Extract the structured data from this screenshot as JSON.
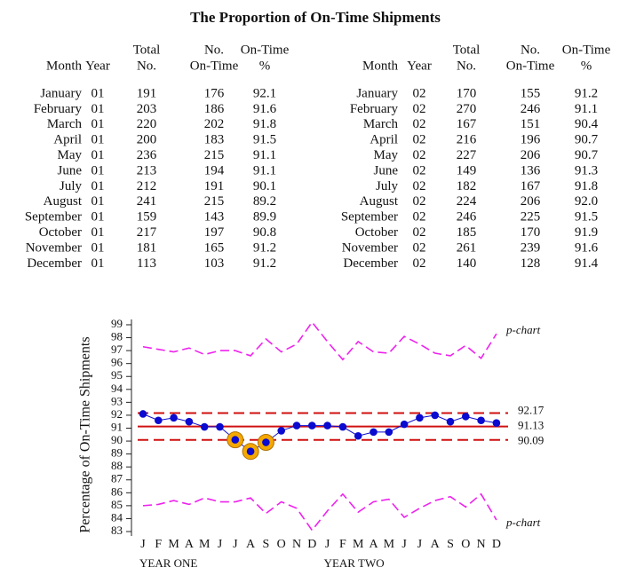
{
  "title": "The Proportion of On-Time Shipments",
  "tables": [
    {
      "columns": [
        [
          "Month"
        ],
        [
          "Year"
        ],
        [
          "Total",
          "No."
        ],
        [
          "No.",
          "On-Time"
        ],
        [
          "On-Time",
          "%"
        ]
      ],
      "rows": [
        [
          "January",
          "01",
          "191",
          "176",
          "92.1"
        ],
        [
          "February",
          "01",
          "203",
          "186",
          "91.6"
        ],
        [
          "March",
          "01",
          "220",
          "202",
          "91.8"
        ],
        [
          "April",
          "01",
          "200",
          "183",
          "91.5"
        ],
        [
          "May",
          "01",
          "236",
          "215",
          "91.1"
        ],
        [
          "June",
          "01",
          "213",
          "194",
          "91.1"
        ],
        [
          "July",
          "01",
          "212",
          "191",
          "90.1"
        ],
        [
          "August",
          "01",
          "241",
          "215",
          "89.2"
        ],
        [
          "September",
          "01",
          "159",
          "143",
          "89.9"
        ],
        [
          "October",
          "01",
          "217",
          "197",
          "90.8"
        ],
        [
          "November",
          "01",
          "181",
          "165",
          "91.2"
        ],
        [
          "December",
          "01",
          "113",
          "103",
          "91.2"
        ]
      ]
    },
    {
      "columns": [
        [
          "Month"
        ],
        [
          "Year"
        ],
        [
          "Total",
          "No."
        ],
        [
          "No.",
          "On-Time"
        ],
        [
          "On-Time",
          "%"
        ]
      ],
      "rows": [
        [
          "January",
          "02",
          "170",
          "155",
          "91.2"
        ],
        [
          "February",
          "02",
          "270",
          "246",
          "91.1"
        ],
        [
          "March",
          "02",
          "167",
          "151",
          "90.4"
        ],
        [
          "April",
          "02",
          "216",
          "196",
          "90.7"
        ],
        [
          "May",
          "02",
          "227",
          "206",
          "90.7"
        ],
        [
          "June",
          "02",
          "149",
          "136",
          "91.3"
        ],
        [
          "July",
          "02",
          "182",
          "167",
          "91.8"
        ],
        [
          "August",
          "02",
          "224",
          "206",
          "92.0"
        ],
        [
          "September",
          "02",
          "246",
          "225",
          "91.5"
        ],
        [
          "October",
          "02",
          "185",
          "170",
          "91.9"
        ],
        [
          "November",
          "02",
          "261",
          "239",
          "91.6"
        ],
        [
          "December",
          "02",
          "140",
          "128",
          "91.4"
        ]
      ]
    }
  ],
  "chart_data": {
    "type": "line",
    "y_label": "Percentage of On-Time Shipments",
    "categories": [
      "J",
      "F",
      "M",
      "A",
      "M",
      "J",
      "J",
      "A",
      "S",
      "O",
      "N",
      "D",
      "J",
      "F",
      "M",
      "A",
      "M",
      "J",
      "J",
      "A",
      "S",
      "O",
      "N",
      "D"
    ],
    "groups": [
      "YEAR ONE",
      "YEAR TWO"
    ],
    "values": [
      92.1,
      91.6,
      91.8,
      91.5,
      91.1,
      91.1,
      90.1,
      89.2,
      89.9,
      90.8,
      91.2,
      91.2,
      91.2,
      91.1,
      90.4,
      90.7,
      90.7,
      91.3,
      91.8,
      92.0,
      91.5,
      91.9,
      91.6,
      91.4
    ],
    "color": "#0a0ad0",
    "highlight": [
      6,
      7,
      8
    ],
    "highlight_color": "#f5a800",
    "reference_lines": [
      {
        "value": 92.17,
        "color": "#d01010",
        "dashed": true
      },
      {
        "value": 91.13,
        "color": "#d01010",
        "dashed": false
      },
      {
        "value": 90.09,
        "color": "#d01010",
        "dashed": true
      }
    ],
    "limit_curves": [
      {
        "label": "p-chart",
        "color": "#ee22ee",
        "values": [
          97.3,
          97.1,
          96.9,
          97.2,
          96.7,
          97.0,
          97.0,
          96.6,
          97.9,
          96.9,
          97.5,
          99.2,
          97.7,
          96.3,
          97.7,
          96.9,
          96.8,
          98.1,
          97.5,
          96.8,
          96.6,
          97.4,
          96.4,
          98.3
        ]
      },
      {
        "label": "p-chart",
        "color": "#ee22ee",
        "values": [
          85.0,
          85.1,
          85.4,
          85.1,
          85.6,
          85.3,
          85.3,
          85.6,
          84.4,
          85.3,
          84.8,
          83.1,
          84.6,
          85.9,
          84.5,
          85.3,
          85.5,
          84.1,
          84.8,
          85.4,
          85.7,
          84.9,
          85.9,
          83.9
        ]
      }
    ],
    "ylim": [
      82.5,
      99.5
    ],
    "yticks": [
      83,
      84,
      85,
      86,
      87,
      88,
      89,
      90,
      91,
      92,
      93,
      94,
      95,
      96,
      97,
      98,
      99
    ]
  }
}
